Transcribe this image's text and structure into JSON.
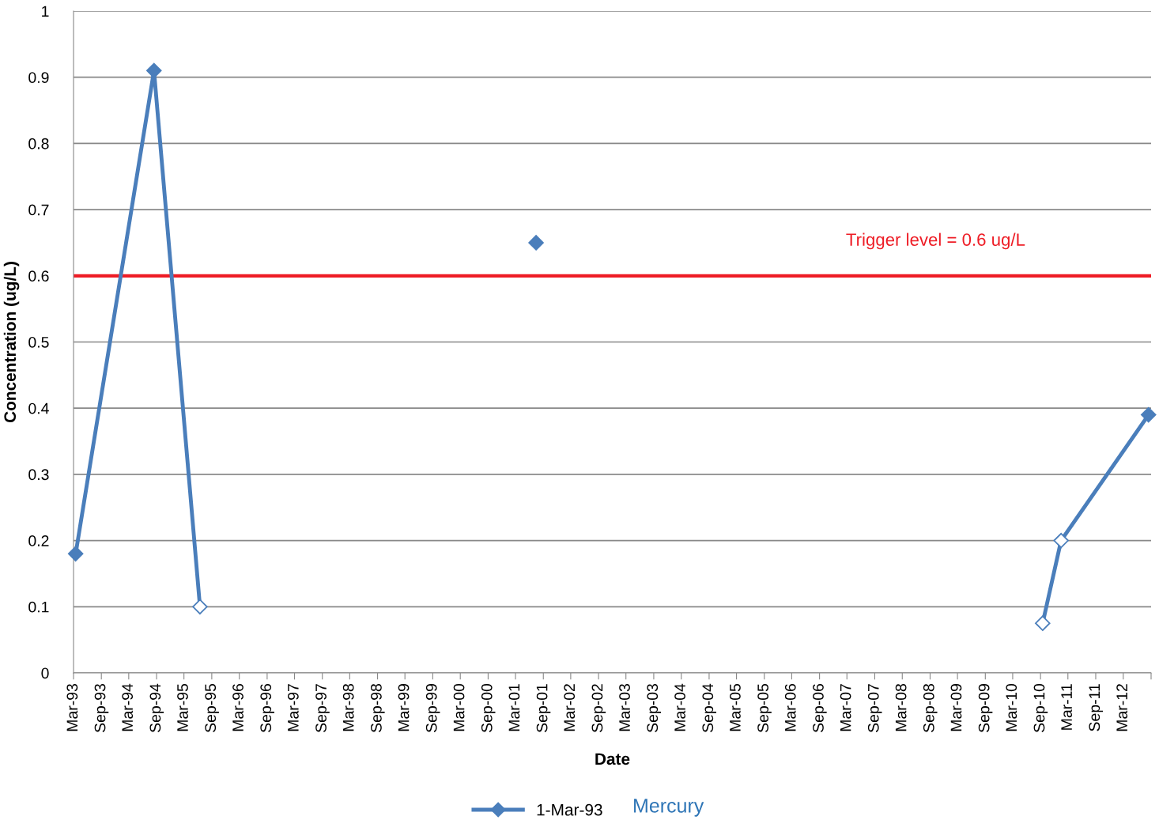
{
  "chart_data": {
    "type": "line",
    "xlabel": "Date",
    "ylabel": "Concentration (ug/L)",
    "x": [
      "1993-03",
      "1994-08-15",
      "1995-06-15",
      "1998-01",
      "2001-07",
      "2006-01",
      "2010-09",
      "2011-01",
      "2012-08"
    ],
    "series": [
      {
        "name": "1-Mar-93",
        "color": "#4a7ebb",
        "values": [
          0.18,
          0.91,
          0.1,
          null,
          0.65,
          null,
          0.075,
          0.2,
          0.39
        ],
        "colors": [
          "#4a7ebb",
          "#4a7ebb",
          "#ffffff",
          null,
          "#4a7ebb",
          null,
          "#ffffff",
          "#ffffff",
          "#4a7ebb"
        ]
      }
    ],
    "xlim": [
      "1993-03-01",
      "2012-09-01"
    ],
    "xticks": [
      {
        "value": "1993-03-01",
        "label": "Mar-93"
      },
      {
        "value": "1993-09-01",
        "label": "Sep-93"
      },
      {
        "value": "1994-03-01",
        "label": "Mar-94"
      },
      {
        "value": "1994-09-01",
        "label": "Sep-94"
      },
      {
        "value": "1995-03-01",
        "label": "Mar-95"
      },
      {
        "value": "1995-09-01",
        "label": "Sep-95"
      },
      {
        "value": "1996-03-01",
        "label": "Mar-96"
      },
      {
        "value": "1996-09-01",
        "label": "Sep-96"
      },
      {
        "value": "1997-03-01",
        "label": "Mar-97"
      },
      {
        "value": "1997-09-01",
        "label": "Sep-97"
      },
      {
        "value": "1998-03-01",
        "label": "Mar-98"
      },
      {
        "value": "1998-09-01",
        "label": "Sep-98"
      },
      {
        "value": "1999-03-01",
        "label": "Mar-99"
      },
      {
        "value": "1999-09-01",
        "label": "Sep-99"
      },
      {
        "value": "2000-03-01",
        "label": "Mar-00"
      },
      {
        "value": "2000-09-01",
        "label": "Sep-00"
      },
      {
        "value": "2001-03-01",
        "label": "Mar-01"
      },
      {
        "value": "2001-09-01",
        "label": "Sep-01"
      },
      {
        "value": "2002-03-01",
        "label": "Mar-02"
      },
      {
        "value": "2002-09-01",
        "label": "Sep-02"
      },
      {
        "value": "2003-03-01",
        "label": "Mar-03"
      },
      {
        "value": "2003-09-01",
        "label": "Sep-03"
      },
      {
        "value": "2004-03-01",
        "label": "Mar-04"
      },
      {
        "value": "2004-09-01",
        "label": "Sep-04"
      },
      {
        "value": "2005-03-01",
        "label": "Mar-05"
      },
      {
        "value": "2005-09-01",
        "label": "Sep-05"
      },
      {
        "value": "2006-03-01",
        "label": "Mar-06"
      },
      {
        "value": "2006-09-01",
        "label": "Sep-06"
      },
      {
        "value": "2007-03-01",
        "label": "Mar-07"
      },
      {
        "value": "2007-09-01",
        "label": "Sep-07"
      },
      {
        "value": "2008-03-01",
        "label": "Mar-08"
      },
      {
        "value": "2008-09-01",
        "label": "Sep-08"
      },
      {
        "value": "2009-03-01",
        "label": "Mar-09"
      },
      {
        "value": "2009-09-01",
        "label": "Sep-09"
      },
      {
        "value": "2010-03-01",
        "label": "Mar-10"
      },
      {
        "value": "2010-09-01",
        "label": "Sep-10"
      },
      {
        "value": "2011-03-01",
        "label": "Mar-11"
      },
      {
        "value": "2011-09-01",
        "label": "Sep-11"
      },
      {
        "value": "2012-03-01",
        "label": "Mar-12"
      },
      {
        "value": "2012-09-01",
        "label": null
      }
    ],
    "ylim": [
      0,
      1
    ],
    "yticks": [
      0,
      0.1,
      0.2,
      0.3,
      0.4,
      0.5,
      0.6,
      0.7,
      0.8,
      0.9,
      1
    ],
    "grid": "y",
    "marker": "diamond",
    "line_style": "solid",
    "legend": "bottom",
    "ref_lines": [
      {
        "axis": "y",
        "value": 0.6,
        "label": "Trigger level = 0.6 ug/L",
        "color": "#ee1c25"
      }
    ],
    "annotations": [
      "Mercury"
    ]
  }
}
